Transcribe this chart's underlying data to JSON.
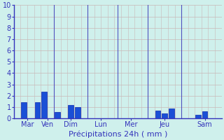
{
  "background_color": "#cff0ec",
  "grid_color_h": "#c8b8b8",
  "grid_color_v": "#c8b8b8",
  "bar_color": "#1a4fd6",
  "bar_edge_color": "#0a2ab0",
  "xlabel": "Précipitations 24h ( mm )",
  "ylim": [
    0,
    10
  ],
  "yticks": [
    0,
    1,
    2,
    3,
    4,
    5,
    6,
    7,
    8,
    9,
    10
  ],
  "day_labels": [
    "Mar",
    "Ven",
    "Dim",
    "Lun",
    "Mer",
    "Jeu",
    "Sam"
  ],
  "bars": [
    {
      "x": 1,
      "height": 1.4
    },
    {
      "x": 3,
      "height": 1.4
    },
    {
      "x": 4,
      "height": 2.35
    },
    {
      "x": 6,
      "height": 0.55
    },
    {
      "x": 8,
      "height": 1.2
    },
    {
      "x": 9,
      "height": 1.0
    },
    {
      "x": 21,
      "height": 0.7
    },
    {
      "x": 22,
      "height": 0.45
    },
    {
      "x": 23,
      "height": 0.9
    },
    {
      "x": 27,
      "height": 0.3
    },
    {
      "x": 28,
      "height": 0.6
    }
  ],
  "bar_width": 0.8,
  "tick_color": "#3333bb",
  "label_color": "#3333bb",
  "axis_color": "#3333bb",
  "figsize": [
    3.2,
    2.0
  ],
  "dpi": 100,
  "num_slots": 30,
  "day_tick_positions": [
    1.5,
    4.5,
    8.0,
    12.5,
    17.0,
    22.0,
    28.0
  ],
  "day_vlines": [
    5.5,
    10.5,
    15.0,
    19.5,
    24.5
  ],
  "xlim": [
    -0.5,
    30.5
  ]
}
